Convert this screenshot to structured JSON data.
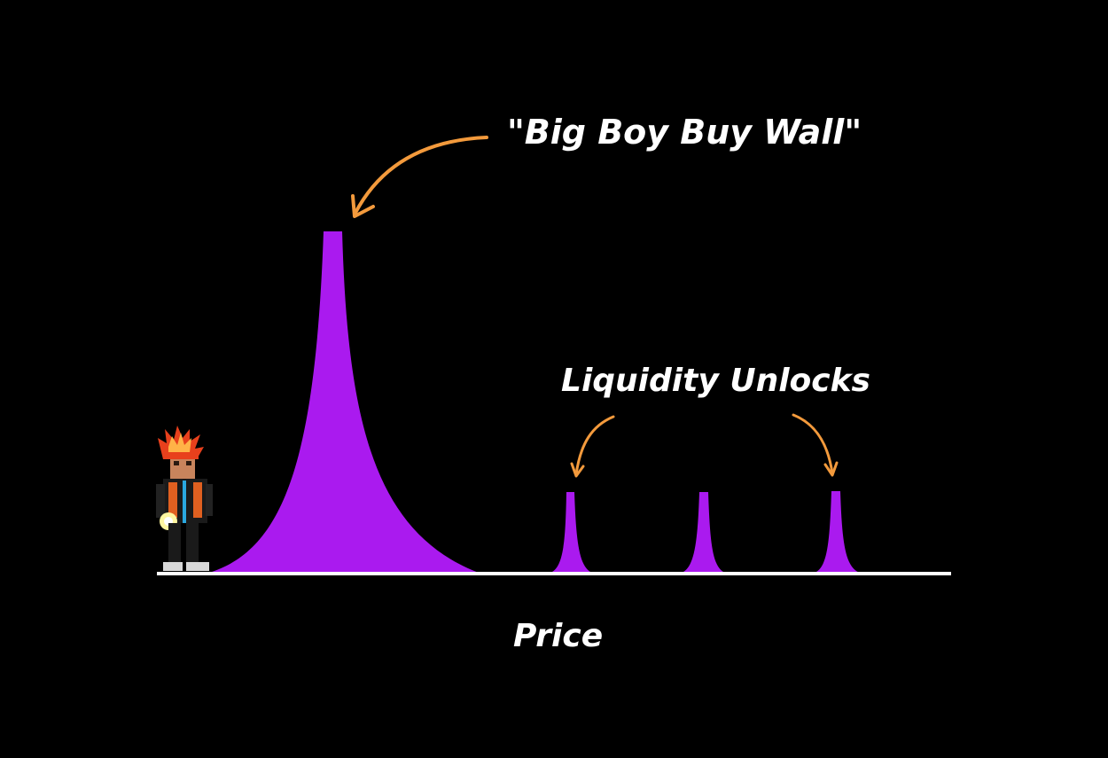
{
  "labels": {
    "buy_wall": "\"Big Boy Buy Wall\"",
    "liquidity_unlocks": "Liquidity Unlocks",
    "x_axis": "Price"
  },
  "colors": {
    "background": "#000000",
    "fill": "#aa1aef",
    "arrow": "#f39a3c",
    "axis": "#ffffff",
    "text": "#ffffff"
  },
  "icons": {
    "character": "pixel-art-character-with-spiky-orange-hair-holding-glowing-orb"
  }
}
